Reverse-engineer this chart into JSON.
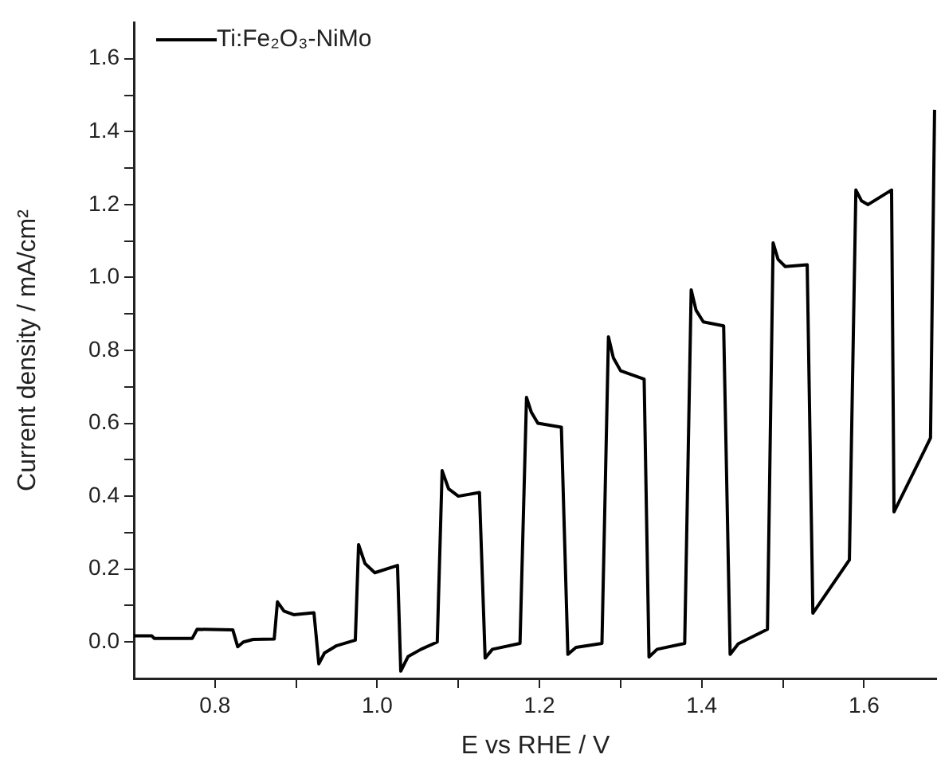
{
  "chart_data": {
    "type": "line",
    "xlabel": "E vs RHE / V",
    "ylabel": "Current density / mA/cm²",
    "legend": "top left",
    "marker": "none",
    "line_style": "solid",
    "grid": false,
    "xlim": [
      0.7,
      1.69
    ],
    "xticks": [
      0.8,
      {
        "value": 0.9,
        "label": null
      },
      {
        "value": 1,
        "label": "1.0"
      },
      {
        "value": 1.1,
        "label": null
      },
      1.2,
      {
        "value": 1.3,
        "label": null
      },
      1.4,
      {
        "value": 1.5,
        "label": null
      },
      1.6
    ],
    "ylim": [
      -0.1,
      1.7
    ],
    "yticks": [
      {
        "value": 0,
        "label": "0.0"
      },
      {
        "value": 0.1,
        "label": null
      },
      0.2,
      {
        "value": 0.3,
        "label": null
      },
      0.4,
      {
        "value": 0.5,
        "label": null
      },
      0.6,
      {
        "value": 0.7,
        "label": null
      },
      0.8,
      {
        "value": 0.9,
        "label": null
      },
      {
        "value": 1,
        "label": "1.0"
      },
      {
        "value": 1.1,
        "label": null
      },
      1.2,
      {
        "value": 1.3,
        "label": null
      },
      1.4,
      {
        "value": 1.5,
        "label": null
      },
      1.6
    ],
    "series": [
      {
        "name": "Ti:Fe₂O₃-NiMo",
        "color": "#000000",
        "x": [
          0.7,
          0.722,
          0.725,
          0.772,
          0.778,
          0.822,
          0.828,
          0.835,
          0.847,
          0.873,
          0.877,
          0.885,
          0.897,
          0.922,
          0.928,
          0.935,
          0.95,
          0.973,
          0.977,
          0.985,
          0.997,
          1.025,
          1.029,
          1.038,
          1.054,
          1.074,
          1.08,
          1.088,
          1.1,
          1.126,
          1.133,
          1.142,
          1.176,
          1.184,
          1.19,
          1.198,
          1.227,
          1.235,
          1.245,
          1.277,
          1.285,
          1.291,
          1.3,
          1.329,
          1.335,
          1.345,
          1.379,
          1.387,
          1.393,
          1.402,
          1.427,
          1.435,
          1.445,
          1.481,
          1.488,
          1.494,
          1.503,
          1.53,
          1.537,
          1.582,
          1.59,
          1.597,
          1.605,
          1.634,
          1.637,
          1.675,
          1.682,
          1.687
        ],
        "values": [
          0.017,
          0.017,
          0.01,
          0.01,
          0.035,
          0.033,
          -0.013,
          0.0,
          0.007,
          0.008,
          0.11,
          0.085,
          0.075,
          0.08,
          -0.06,
          -0.03,
          -0.01,
          0.005,
          0.267,
          0.215,
          0.19,
          0.21,
          -0.08,
          -0.04,
          -0.02,
          0.0,
          0.47,
          0.42,
          0.4,
          0.41,
          -0.044,
          -0.02,
          -0.004,
          0.671,
          0.63,
          0.6,
          0.589,
          -0.034,
          -0.015,
          -0.004,
          0.837,
          0.78,
          0.744,
          0.721,
          -0.041,
          -0.02,
          -0.004,
          0.966,
          0.91,
          0.878,
          0.867,
          -0.034,
          -0.005,
          0.035,
          1.095,
          1.05,
          1.03,
          1.035,
          0.079,
          0.225,
          1.24,
          1.21,
          1.2,
          1.24,
          0.357,
          0.528,
          0.56,
          1.46
        ]
      }
    ]
  }
}
